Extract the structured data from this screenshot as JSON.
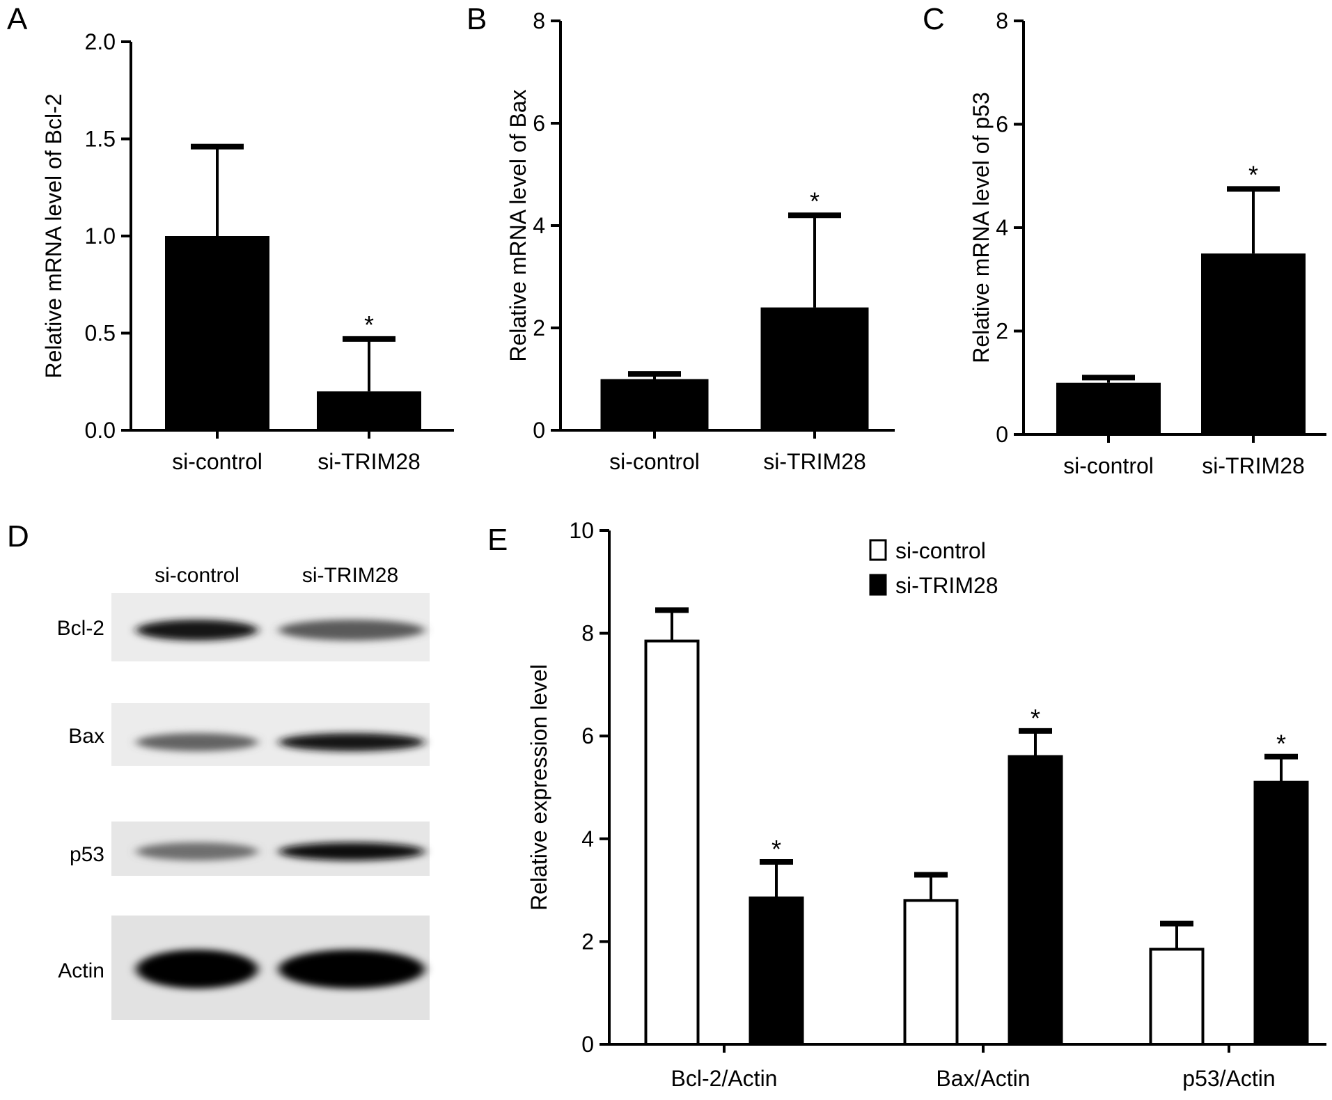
{
  "panels": {
    "A": {
      "letter": "A"
    },
    "B": {
      "letter": "B"
    },
    "C": {
      "letter": "C"
    },
    "D": {
      "letter": "D"
    },
    "E": {
      "letter": "E"
    }
  },
  "western_blot": {
    "lane_labels": [
      "si-control",
      "si-TRIM28"
    ],
    "rows": [
      {
        "label": "Bcl-2",
        "intensity": [
          0.9,
          0.55
        ]
      },
      {
        "label": "Bax",
        "intensity": [
          0.5,
          0.9
        ]
      },
      {
        "label": "p53",
        "intensity": [
          0.45,
          0.95
        ]
      },
      {
        "label": "Actin",
        "intensity": [
          1.0,
          1.0
        ]
      }
    ]
  },
  "chart_data": [
    {
      "panel": "A",
      "type": "bar",
      "categories": [
        "si-control",
        "si-TRIM28"
      ],
      "values": [
        1.0,
        0.2
      ],
      "errors": [
        0.46,
        0.27
      ],
      "significance": [
        "",
        "*"
      ],
      "ylabel": "Relative mRNA level of Bcl-2",
      "xlabel": "",
      "ylim": [
        0,
        2.0
      ],
      "yticks": [
        "0.0",
        "0.5",
        "1.0",
        "1.5",
        "2.0"
      ],
      "bar_color": "#000000"
    },
    {
      "panel": "B",
      "type": "bar",
      "categories": [
        "si-control",
        "si-TRIM28"
      ],
      "values": [
        1.0,
        2.4
      ],
      "errors": [
        0.1,
        1.8
      ],
      "significance": [
        "",
        "*"
      ],
      "ylabel": "Relative mRNA level of Bax",
      "xlabel": "",
      "ylim": [
        0,
        8
      ],
      "yticks": [
        "0",
        "2",
        "4",
        "6",
        "8"
      ],
      "bar_color": "#000000"
    },
    {
      "panel": "C",
      "type": "bar",
      "categories": [
        "si-control",
        "si-TRIM28"
      ],
      "values": [
        1.0,
        3.5
      ],
      "errors": [
        0.1,
        1.25
      ],
      "significance": [
        "",
        "*"
      ],
      "ylabel": "Relative mRNA level of p53",
      "xlabel": "",
      "ylim": [
        0,
        8
      ],
      "yticks": [
        "0",
        "2",
        "4",
        "6",
        "8"
      ],
      "bar_color": "#000000"
    },
    {
      "panel": "E",
      "type": "bar",
      "categories": [
        "Bcl-2/Actin",
        "Bax/Actin",
        "p53/Actin"
      ],
      "series": [
        {
          "name": "si-control",
          "values": [
            7.85,
            2.8,
            1.85
          ],
          "errors": [
            0.6,
            0.5,
            0.5
          ],
          "significance": [
            "",
            "",
            ""
          ],
          "color": "#ffffff"
        },
        {
          "name": "si-TRIM28",
          "values": [
            2.85,
            5.6,
            5.1
          ],
          "errors": [
            0.7,
            0.5,
            0.5
          ],
          "significance": [
            "*",
            "*",
            "*"
          ],
          "color": "#000000"
        }
      ],
      "ylabel": "Relative expression level",
      "xlabel": "",
      "ylim": [
        0,
        10
      ],
      "yticks": [
        "0",
        "2",
        "4",
        "6",
        "8",
        "10"
      ],
      "legend": "top-right"
    }
  ]
}
